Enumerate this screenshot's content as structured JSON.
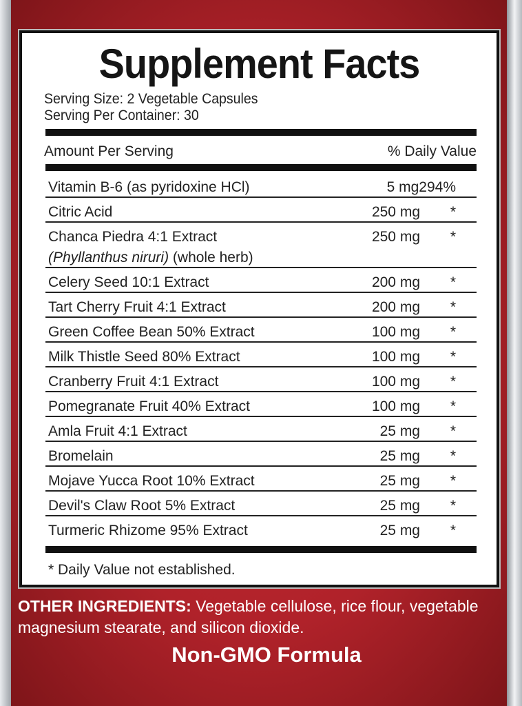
{
  "title": "Supplement Facts",
  "serving_size": "Serving Size: 2 Vegetable Capsules",
  "servings_per_container": "Serving Per Container: 30",
  "header": {
    "amount": "Amount Per Serving",
    "daily_value": "% Daily Value"
  },
  "rows": [
    {
      "name": "Vitamin B-6 (as pyridoxine HCl)",
      "amount": "5 mg",
      "dv": "294%"
    },
    {
      "name": "Citric Acid",
      "amount": "250 mg",
      "dv": "*"
    },
    {
      "name": "Chanca Piedra 4:1 Extract",
      "latin": "(Phyllanthus niruri)",
      "part": " (whole herb)",
      "amount": "250 mg",
      "dv": "*"
    },
    {
      "name": "Celery Seed 10:1 Extract",
      "amount": "200 mg",
      "dv": "*"
    },
    {
      "name": "Tart Cherry Fruit 4:1 Extract",
      "amount": "200 mg",
      "dv": "*"
    },
    {
      "name": "Green Coffee Bean 50% Extract",
      "amount": "100 mg",
      "dv": "*"
    },
    {
      "name": "Milk Thistle Seed 80% Extract",
      "amount": "100 mg",
      "dv": "*"
    },
    {
      "name": "Cranberry Fruit 4:1 Extract",
      "amount": "100 mg",
      "dv": "*"
    },
    {
      "name": "Pomegranate Fruit 40% Extract",
      "amount": "100 mg",
      "dv": "*"
    },
    {
      "name": "Amla Fruit 4:1 Extract",
      "amount": "25 mg",
      "dv": "*"
    },
    {
      "name": "Bromelain",
      "amount": "25 mg",
      "dv": "*"
    },
    {
      "name": "Mojave Yucca Root 10% Extract",
      "amount": "25 mg",
      "dv": "*"
    },
    {
      "name": "Devil's Claw Root 5% Extract",
      "amount": "25 mg",
      "dv": "*"
    },
    {
      "name": "Turmeric Rhizome 95% Extract",
      "amount": "25 mg",
      "dv": "*"
    }
  ],
  "footnote": "* Daily Value not established.",
  "other_ingredients": {
    "label": "OTHER INGREDIENTS:",
    "text": " Vegetable cellulose, rice flour, vegetable magnesium stearate, and silicon dioxide."
  },
  "badge": "Non-GMO Formula",
  "colors": {
    "panel_red": "#b0222a",
    "text": "#222222"
  }
}
